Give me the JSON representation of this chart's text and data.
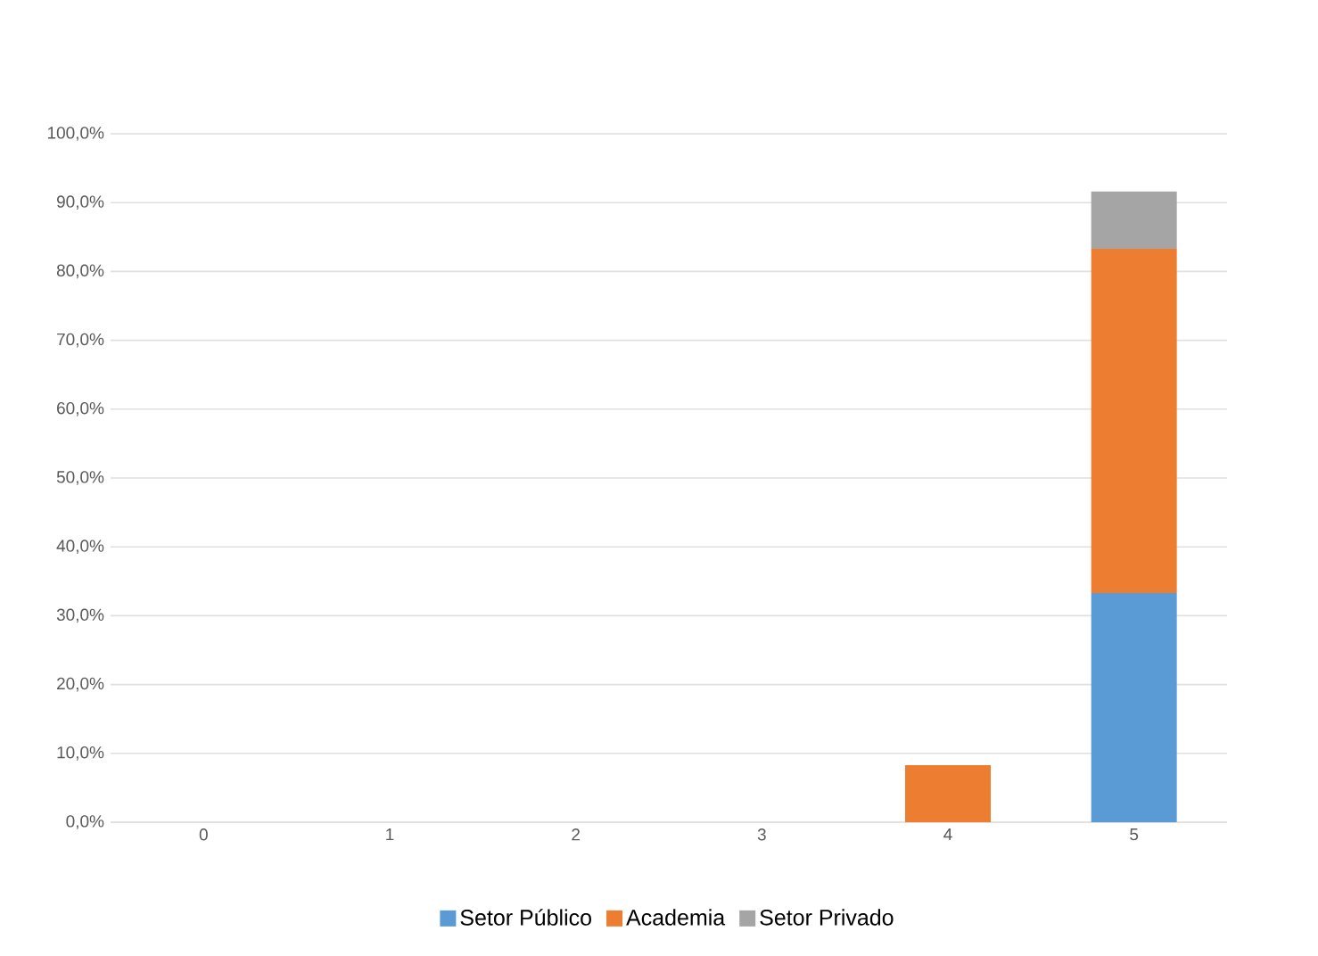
{
  "chart_data": {
    "type": "bar",
    "stacked": true,
    "categories": [
      "0",
      "1",
      "2",
      "3",
      "4",
      "5"
    ],
    "series": [
      {
        "name": "Setor Público",
        "color": "#5b9bd5",
        "values": [
          0,
          0,
          0,
          0,
          0,
          33.3
        ]
      },
      {
        "name": "Academia",
        "color": "#ed7d31",
        "values": [
          0,
          0,
          0,
          0,
          8.3,
          50.0
        ]
      },
      {
        "name": "Setor Privado",
        "color": "#a5a5a5",
        "values": [
          0,
          0,
          0,
          0,
          0,
          8.3
        ]
      }
    ],
    "ylim": [
      0,
      100
    ],
    "yticks": [
      {
        "value": 0,
        "label": "0,0%"
      },
      {
        "value": 10,
        "label": "10,0%"
      },
      {
        "value": 20,
        "label": "20,0%"
      },
      {
        "value": 30,
        "label": "30,0%"
      },
      {
        "value": 40,
        "label": "40,0%"
      },
      {
        "value": 50,
        "label": "50,0%"
      },
      {
        "value": 60,
        "label": "60,0%"
      },
      {
        "value": 70,
        "label": "70,0%"
      },
      {
        "value": 80,
        "label": "80,0%"
      },
      {
        "value": 90,
        "label": "90,0%"
      },
      {
        "value": 100,
        "label": "100,0%"
      }
    ],
    "grid": "y",
    "legend": "bottom"
  }
}
